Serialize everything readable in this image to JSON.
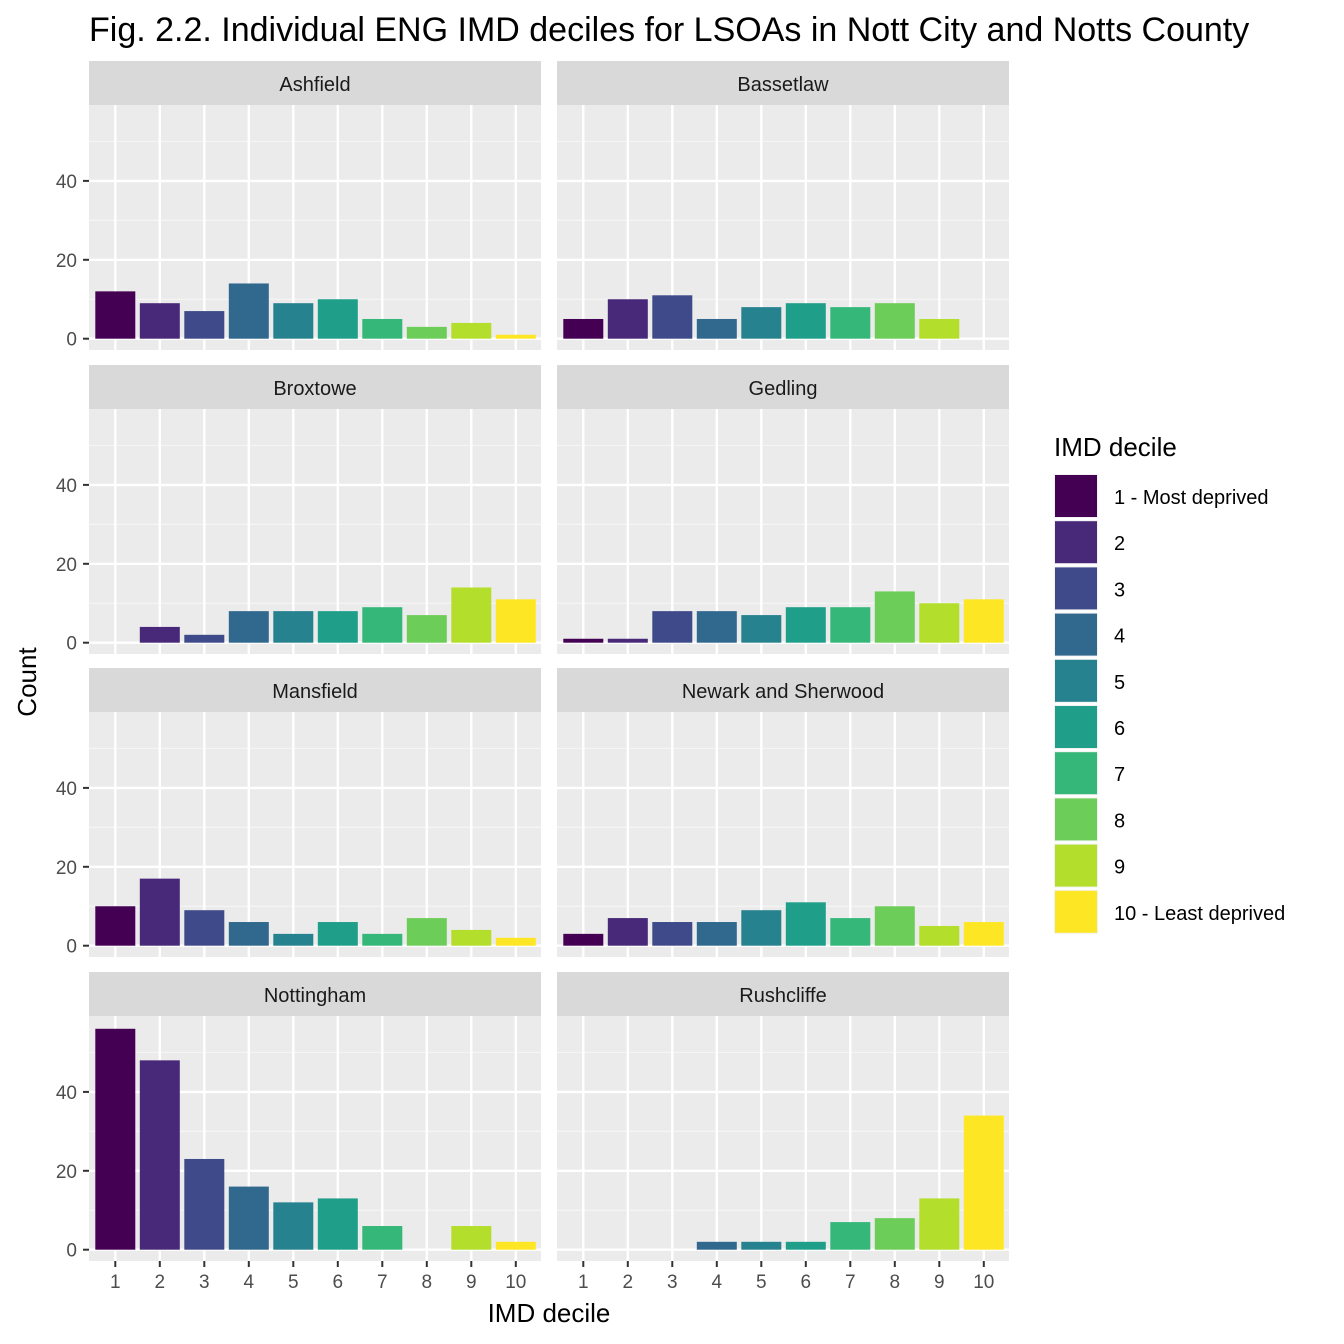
{
  "chart_data": {
    "type": "bar",
    "title": "Fig. 2.2. Individual ENG IMD deciles for LSOAs in Nott City and Notts County",
    "xlabel": "IMD decile",
    "ylabel": "Count",
    "categories": [
      "1",
      "2",
      "3",
      "4",
      "5",
      "6",
      "7",
      "8",
      "9",
      "10"
    ],
    "y_ticks": [
      0,
      20,
      40
    ],
    "ylim": [
      0,
      57
    ],
    "grid": true,
    "legend": {
      "title": "IMD decile",
      "placement": "right",
      "entries": [
        "1 - Most deprived",
        "2",
        "3",
        "4",
        "5",
        "6",
        "7",
        "8",
        "9",
        "10 - Least deprived"
      ]
    },
    "colors": [
      "#440154",
      "#482878",
      "#3E4A89",
      "#31688E",
      "#26828E",
      "#1F9E89",
      "#35B779",
      "#6DCD59",
      "#B4DE2C",
      "#FDE725"
    ],
    "facets": [
      {
        "name": "Ashfield",
        "values": [
          12,
          9,
          7,
          14,
          9,
          10,
          5,
          3,
          4,
          1
        ]
      },
      {
        "name": "Bassetlaw",
        "values": [
          5,
          10,
          11,
          5,
          8,
          9,
          8,
          9,
          5,
          0
        ]
      },
      {
        "name": "Broxtowe",
        "values": [
          0,
          4,
          2,
          8,
          8,
          8,
          9,
          7,
          14,
          11
        ]
      },
      {
        "name": "Gedling",
        "values": [
          1,
          1,
          8,
          8,
          7,
          9,
          9,
          13,
          10,
          11
        ]
      },
      {
        "name": "Mansfield",
        "values": [
          10,
          17,
          9,
          6,
          3,
          6,
          3,
          7,
          4,
          2
        ]
      },
      {
        "name": "Newark and Sherwood",
        "values": [
          3,
          7,
          6,
          6,
          9,
          11,
          7,
          10,
          5,
          6
        ]
      },
      {
        "name": "Nottingham",
        "values": [
          56,
          48,
          23,
          16,
          12,
          13,
          6,
          0,
          6,
          2
        ]
      },
      {
        "name": "Rushcliffe",
        "values": [
          0,
          0,
          0,
          2,
          2,
          2,
          7,
          8,
          13,
          34
        ]
      }
    ]
  }
}
